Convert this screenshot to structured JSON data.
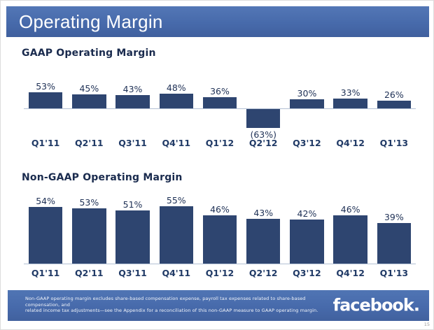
{
  "header": {
    "title": "Operating Margin"
  },
  "chart_data": [
    {
      "type": "bar",
      "title": "GAAP Operating Margin",
      "categories": [
        "Q1'11",
        "Q2'11",
        "Q3'11",
        "Q4'11",
        "Q1'12",
        "Q2'12",
        "Q3'12",
        "Q4'12",
        "Q1'13"
      ],
      "values": [
        53,
        45,
        43,
        48,
        36,
        -63,
        30,
        33,
        26
      ],
      "value_labels": [
        "53%",
        "45%",
        "43%",
        "48%",
        "36%",
        "(63%)",
        "30%",
        "33%",
        "26%"
      ],
      "unit": "%",
      "xlabel": "",
      "ylabel": "",
      "ylim": [
        -70,
        60
      ],
      "grid": false,
      "legend": "none",
      "bar_color": "#2e4570"
    },
    {
      "type": "bar",
      "title": "Non-GAAP Operating Margin",
      "categories": [
        "Q1'11",
        "Q2'11",
        "Q3'11",
        "Q4'11",
        "Q1'12",
        "Q2'12",
        "Q3'12",
        "Q4'12",
        "Q1'13"
      ],
      "values": [
        54,
        53,
        51,
        55,
        46,
        43,
        42,
        46,
        39
      ],
      "value_labels": [
        "54%",
        "53%",
        "51%",
        "55%",
        "46%",
        "43%",
        "42%",
        "46%",
        "39%"
      ],
      "unit": "%",
      "xlabel": "",
      "ylabel": "",
      "ylim": [
        0,
        60
      ],
      "grid": false,
      "legend": "none",
      "bar_color": "#2e4570"
    }
  ],
  "footer": {
    "footnote_lines": [
      "Non-GAAP operating margin excludes share-based compensation expense, payroll tax expenses related to share-based compensation, and",
      "related income tax adjustments—see the Appendix for a reconciliation of this non-GAAP measure to GAAP operating margin."
    ],
    "logo_text": "facebook."
  },
  "page_number": "15",
  "colors": {
    "band_blue": "#476aab",
    "bar_navy": "#2e4570",
    "title_navy": "#1a2b4e",
    "axis_line": "#b3c0d4"
  }
}
